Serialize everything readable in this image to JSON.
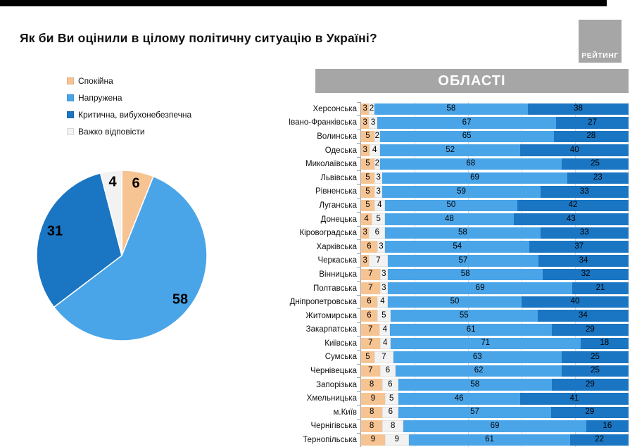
{
  "header": {
    "title": "Як би Ви оцінили в цілому політичну ситуацію в Україні?",
    "logo_text": "РЕЙТИНГ"
  },
  "chart_data": [
    {
      "type": "pie",
      "labels": [
        "Спокійна",
        "Напружена",
        "Критична, вибухонебезпечна",
        "Важко відповісти"
      ],
      "values": [
        6,
        58,
        31,
        4
      ],
      "colors": [
        "#F6C493",
        "#4AA5E8",
        "#1A75C2",
        "#F2F2F2"
      ],
      "start_angle": "12 o'clock",
      "direction": "clockwise",
      "legend_position": "top-left",
      "data_labels": "inside, bold"
    },
    {
      "type": "bar",
      "subtype": "100%-stacked-horizontal",
      "header": "ОБЛАСТІ",
      "segment_order_note": "segments drawn left-to-right in the order listed in series",
      "categories": [
        "Херсонська",
        "Івано-Франківська",
        "Волинська",
        "Одеська",
        "Миколаївська",
        "Львівська",
        "Рівненська",
        "Луганська",
        "Донецька",
        "Кіровоградська",
        "Харківська",
        "Черкаська",
        "Вінницька",
        "Полтавська",
        "Дніпропетровська",
        "Житомирська",
        "Закарпатська",
        "Київська",
        "Сумська",
        "Чернівецька",
        "Запорізька",
        "Хмельницька",
        "м.Київ",
        "Чернігівська",
        "Тернопільська"
      ],
      "series": [
        {
          "name": "Спокійна",
          "color": "#F6C493",
          "values": [
            3,
            3,
            5,
            3,
            5,
            5,
            5,
            5,
            4,
            3,
            6,
            3,
            7,
            7,
            6,
            6,
            7,
            7,
            5,
            7,
            8,
            9,
            8,
            8,
            9
          ]
        },
        {
          "name": "Важко відповісти",
          "color": "#F2F2F2",
          "values": [
            2,
            3,
            2,
            4,
            2,
            3,
            3,
            4,
            5,
            6,
            3,
            7,
            3,
            3,
            4,
            5,
            4,
            4,
            7,
            6,
            6,
            5,
            6,
            8,
            9
          ]
        },
        {
          "name": "Напружена",
          "color": "#4AA5E8",
          "values": [
            58,
            67,
            65,
            52,
            68,
            69,
            59,
            50,
            48,
            58,
            54,
            57,
            58,
            69,
            50,
            55,
            61,
            71,
            63,
            62,
            58,
            46,
            57,
            69,
            61
          ]
        },
        {
          "name": "Критична, вибухонебезпечна",
          "color": "#1A75C2",
          "values": [
            38,
            27,
            28,
            40,
            25,
            23,
            33,
            42,
            43,
            33,
            37,
            34,
            32,
            21,
            40,
            34,
            29,
            18,
            25,
            25,
            29,
            41,
            29,
            16,
            22
          ]
        }
      ],
      "xlim": [
        0,
        100
      ],
      "gridlines": true,
      "gridline_interval": 20
    }
  ]
}
